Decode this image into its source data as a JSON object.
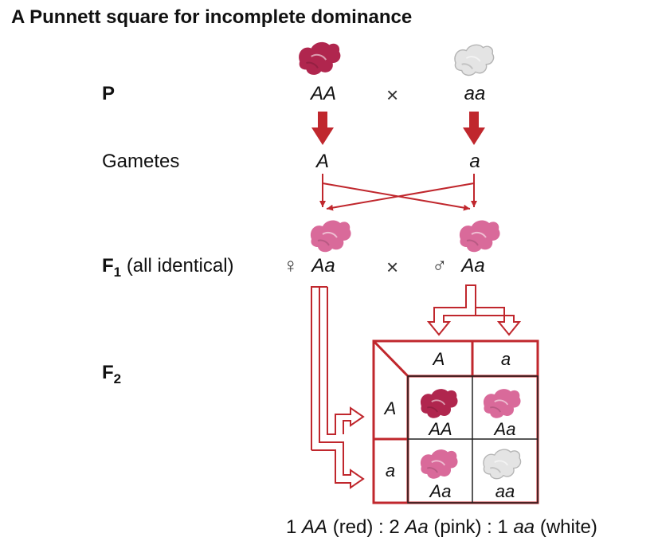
{
  "title": "A Punnett square for incomplete dominance",
  "rows": {
    "p": "P",
    "gametes": "Gametes",
    "f1_main": "F",
    "f1_sub": "1",
    "f1_note": "(all identical)",
    "f2_main": "F",
    "f2_sub": "2"
  },
  "parents": {
    "left": "AA",
    "right": "aa",
    "cross": "×"
  },
  "gametes": {
    "left": "A",
    "right": "a"
  },
  "f1": {
    "female_symbol": "♀",
    "male_symbol": "♂",
    "left": "Aa",
    "right": "Aa",
    "cross": "×"
  },
  "punnett": {
    "col_headers": [
      "A",
      "a"
    ],
    "row_headers": [
      "A",
      "a"
    ],
    "cells": [
      "AA",
      "Aa",
      "Aa",
      "aa"
    ]
  },
  "ratio": {
    "n1": "1 ",
    "g1": "AA",
    "p1": " (red) : 2 ",
    "g2": "Aa",
    "p2": " (pink) : 1 ",
    "g3": "aa",
    "p3": " (white)"
  },
  "colors": {
    "red_flower": "#b0264e",
    "pink_flower": "#d96a9a",
    "white_flower": "#e6e6e6",
    "arrow_red": "#c0272d",
    "grid_red": "#c0272d"
  }
}
